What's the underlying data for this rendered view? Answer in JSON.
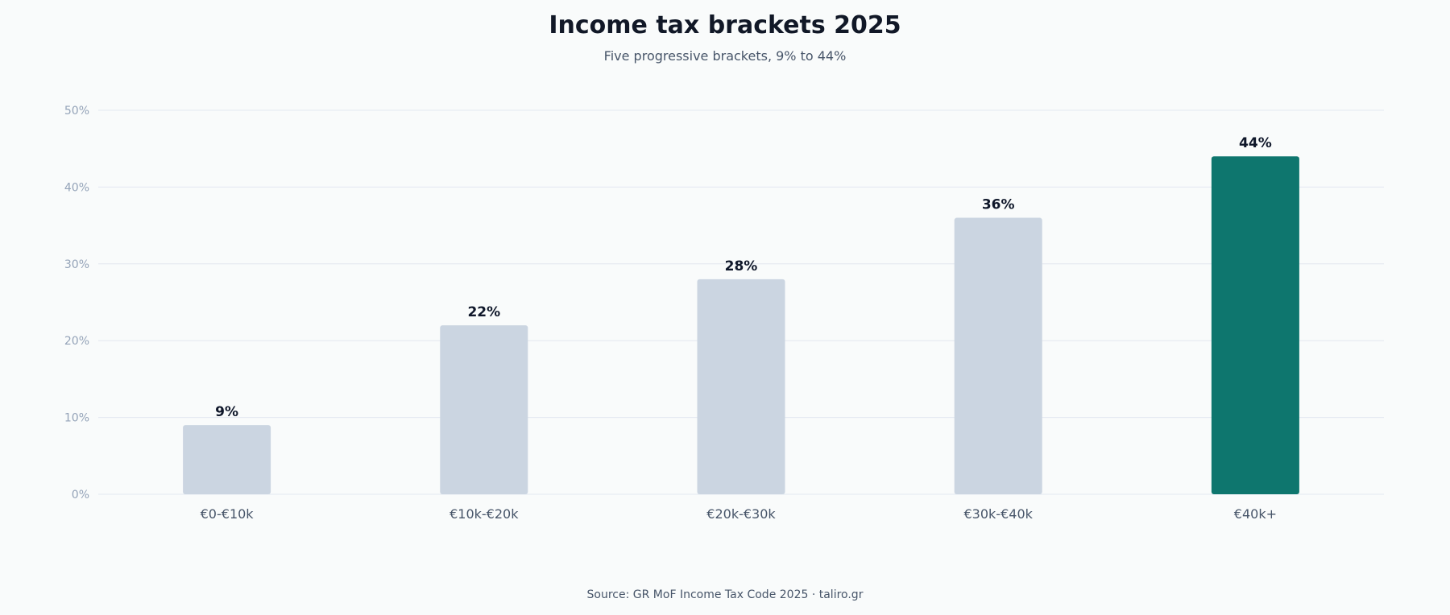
{
  "colors": {
    "bar_default": "#cbd5e1",
    "bar_highlight": "#0e766e",
    "grid": "#e2e8f0",
    "axis_tick": "#94a3b8",
    "category_label": "#475569",
    "value_label": "#0f172a"
  },
  "source": "Source: GR MoF Income Tax Code 2025 · taliro.gr",
  "chart_data": {
    "type": "bar",
    "title": "Income tax brackets 2025",
    "subtitle": "Five progressive brackets, 9% to 44%",
    "xlabel": "",
    "ylabel": "",
    "categories": [
      "€0-€10k",
      "€10k-€20k",
      "€20k-€30k",
      "€30k-€40k",
      "€40k+"
    ],
    "values": [
      9,
      22,
      28,
      36,
      44
    ],
    "value_labels": [
      "9%",
      "22%",
      "28%",
      "36%",
      "44%"
    ],
    "highlight_index": 4,
    "ylim": [
      0,
      50
    ],
    "yticks": [
      0,
      10,
      20,
      30,
      40,
      50
    ],
    "ytick_labels": [
      "0%",
      "10%",
      "20%",
      "30%",
      "40%",
      "50%"
    ],
    "grid": true,
    "legend": "none"
  }
}
